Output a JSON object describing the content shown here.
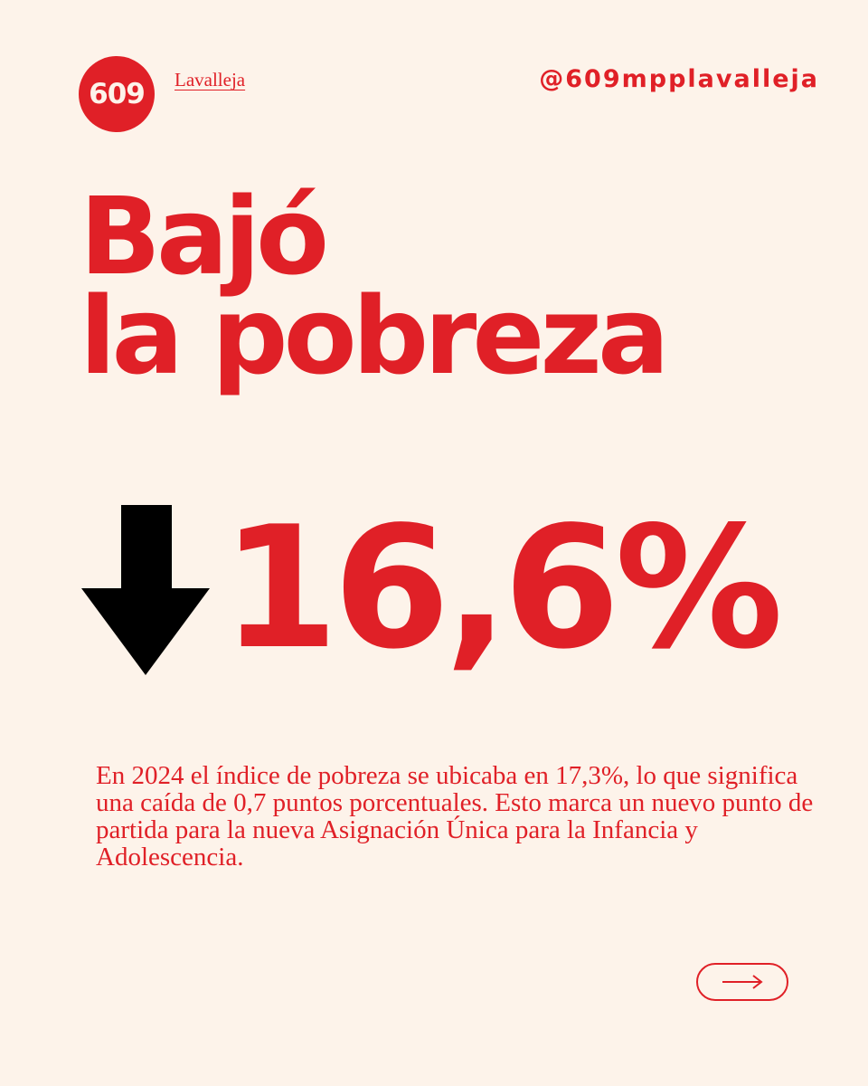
{
  "header": {
    "logo_text": "609",
    "org_name": "Lavalleja",
    "handle": "@609mpplavalleja"
  },
  "headline": {
    "line1": "Bajó",
    "line2": "la pobreza"
  },
  "stat": {
    "value": "16,6%",
    "direction_icon": "arrow-down-icon"
  },
  "body": {
    "text": "En 2024 el índice de pobreza se ubicaba en 17,3%, lo que significa una caída de 0,7 puntos porcentuales. Esto marca un nuevo punto de partida para la nueva Asignación Única para la Infancia y Adolescencia."
  },
  "navigation": {
    "next_icon": "arrow-right-icon"
  },
  "colors": {
    "background": "#fdf3ea",
    "accent": "#e02027",
    "arrow": "#000000"
  }
}
